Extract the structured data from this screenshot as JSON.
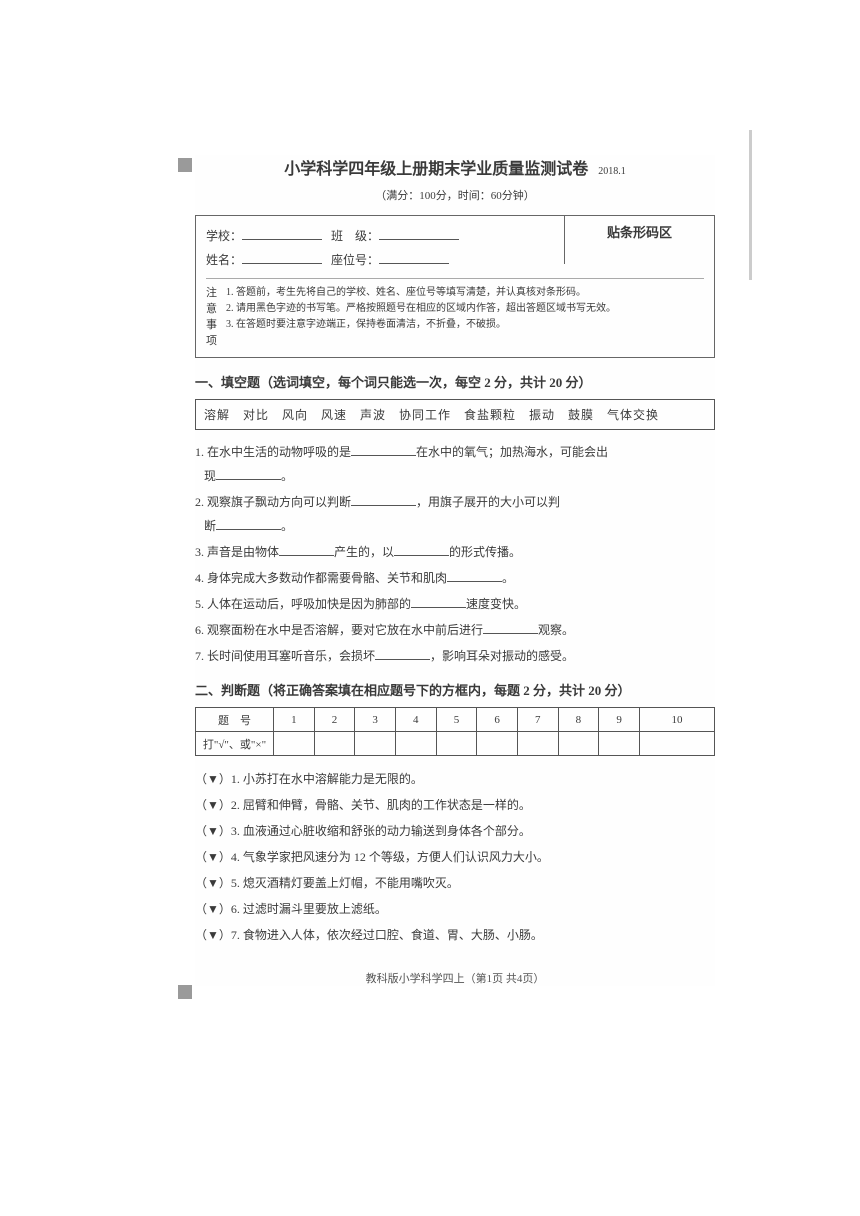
{
  "header": {
    "title": "小学科学四年级上册期末学业质量监测试卷",
    "date": "2018.1",
    "subtitle": "（满分：100分，时间：60分钟）"
  },
  "info": {
    "school_label": "学校：",
    "class_label": "班　级：",
    "name_label": "姓名：",
    "seat_label": "座位号：",
    "barcode_label": "贴条形码区"
  },
  "notice": {
    "heading": [
      "注",
      "意",
      "事",
      "项"
    ],
    "lines": [
      "1. 答题前，考生先将自己的学校、姓名、座位号等填写清楚，并认真核对条形码。",
      "2. 请用黑色字迹的书写笔。严格按照题号在相应的区域内作答，超出答题区域书写无效。",
      "3. 在答题时要注意字迹端正，保持卷面清洁，不折叠，不破损。"
    ]
  },
  "section1": {
    "title": "一、填空题（选词填空，每个词只能选一次，每空 2 分，共计 20 分）",
    "wordbank": "溶解　对比　风向　风速　声波　协同工作　食盐颗粒　振动　鼓膜　气体交换",
    "q1a": "1. 在水中生活的动物呼吸的是",
    "q1b": "在水中的氧气；加热海水，可能会出",
    "q1c": "现",
    "q1d": "。",
    "q2a": "2. 观察旗子飘动方向可以判断",
    "q2b": "，用旗子展开的大小可以判",
    "q2c": "断",
    "q2d": "。",
    "q3a": "3. 声音是由物体",
    "q3b": "产生的，以",
    "q3c": "的形式传播。",
    "q4a": "4. 身体完成大多数动作都需要骨骼、关节和肌肉",
    "q4b": "。",
    "q5a": "5. 人体在运动后，呼吸加快是因为肺部的",
    "q5b": "速度变快。",
    "q6a": "6. 观察面粉在水中是否溶解，要对它放在水中前后进行",
    "q6b": "观察。",
    "q7a": "7. 长时间使用耳塞听音乐，会损坏",
    "q7b": "，影响耳朵对振动的感受。"
  },
  "section2": {
    "title": "二、判断题（将正确答案填在相应题号下的方框内，每题 2 分，共计 20 分）",
    "row_label": "题　号",
    "mark_label": "打\"√\"、或\"×\"",
    "cols": [
      "1",
      "2",
      "3",
      "4",
      "5",
      "6",
      "7",
      "8",
      "9",
      "10"
    ],
    "items": [
      "（▼）1. 小苏打在水中溶解能力是无限的。",
      "（▼）2. 屈臂和伸臂，骨骼、关节、肌肉的工作状态是一样的。",
      "（▼）3. 血液通过心脏收缩和舒张的动力输送到身体各个部分。",
      "（▼）4. 气象学家把风速分为 12 个等级，方便人们认识风力大小。",
      "（▼）5. 熄灭酒精灯要盖上灯帽，不能用嘴吹灭。",
      "（▼）6. 过滤时漏斗里要放上滤纸。",
      "（▼）7. 食物进入人体，依次经过口腔、食道、胃、大肠、小肠。"
    ]
  },
  "footer": "教科版小学科学四上（第1页 共4页）",
  "colors": {
    "text": "#3a3a3a",
    "border": "#555555",
    "background": "#ffffff",
    "mark": "#9a9a9a"
  }
}
